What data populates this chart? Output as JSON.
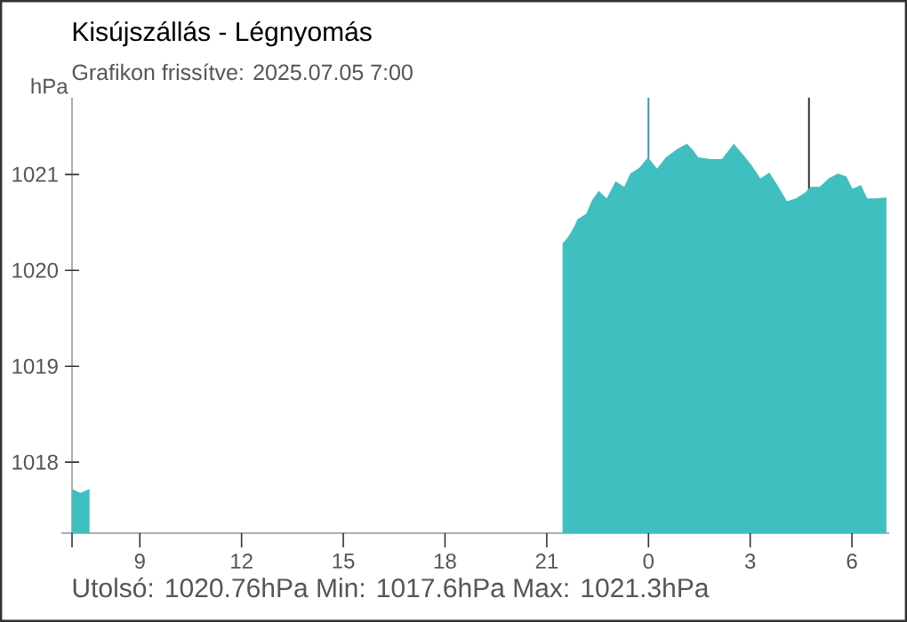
{
  "chart_data": {
    "type": "area",
    "title": "Kisújszállás - Légnyomás",
    "subtitle": "Grafikon frissítve: 2025.07.05 7:00",
    "ylabel": "hPa",
    "annotations": [
      "Utolsó: 1020.76hPa  Min: 1017.6hPa  Max: 1021.3hPa"
    ],
    "x": [
      "2025-07-04T07:00",
      "2025-07-04T07:15",
      "2025-07-04T07:31",
      "2025-07-04T14:00",
      "2025-07-04T21:28",
      "2025-07-04T21:38",
      "2025-07-04T21:49",
      "2025-07-04T21:54",
      "2025-07-04T22:10",
      "2025-07-04T22:20",
      "2025-07-04T22:32",
      "2025-07-04T22:46",
      "2025-07-04T23:02",
      "2025-07-04T23:17",
      "2025-07-04T23:28",
      "2025-07-04T23:44",
      "2025-07-04T23:59",
      "2025-07-05T00:15",
      "2025-07-05T00:31",
      "2025-07-05T00:52",
      "2025-07-05T01:08",
      "2025-07-05T01:18",
      "2025-07-05T01:28",
      "2025-07-05T01:49",
      "2025-07-05T02:10",
      "2025-07-05T02:31",
      "2025-07-05T02:47",
      "2025-07-05T03:02",
      "2025-07-05T03:18",
      "2025-07-05T03:34",
      "2025-07-05T03:50",
      "2025-07-05T04:05",
      "2025-07-05T04:21",
      "2025-07-05T04:37",
      "2025-07-05T04:47",
      "2025-07-05T05:03",
      "2025-07-05T05:19",
      "2025-07-05T05:35",
      "2025-07-05T05:50",
      "2025-07-05T06:01",
      "2025-07-05T06:16",
      "2025-07-05T06:27",
      "2025-07-05T06:43",
      "2025-07-05T07:01"
    ],
    "values": [
      1017.72,
      1017.68,
      1017.72,
      null,
      1020.28,
      1020.35,
      1020.46,
      1020.53,
      1020.59,
      1020.73,
      1020.83,
      1020.75,
      1020.93,
      1020.87,
      1021.01,
      1021.07,
      1021.18,
      1021.06,
      1021.18,
      1021.27,
      1021.32,
      1021.26,
      1021.18,
      1021.16,
      1021.16,
      1021.32,
      1021.21,
      1021.1,
      1020.96,
      1021.02,
      1020.87,
      1020.72,
      1020.75,
      1020.81,
      1020.87,
      1020.87,
      1020.96,
      1021.01,
      1020.98,
      1020.85,
      1020.89,
      1020.75,
      1020.75,
      1020.76
    ],
    "color": "#40bfc1",
    "xlim": [
      "2025-07-04T07:00",
      "2025-07-05T07:06"
    ],
    "ylim": [
      1017.26,
      1021.8
    ],
    "xticks": [
      {
        "value": "2025-07-04T07:00",
        "label": null
      },
      {
        "value": "2025-07-04T09:00",
        "label": "9"
      },
      {
        "value": "2025-07-04T12:00",
        "label": "12"
      },
      {
        "value": "2025-07-04T15:00",
        "label": "15"
      },
      {
        "value": "2025-07-04T18:00",
        "label": "18"
      },
      {
        "value": "2025-07-04T21:00",
        "label": "21"
      },
      {
        "value": "2025-07-05T00:00",
        "label": "0"
      },
      {
        "value": "2025-07-05T03:00",
        "label": "3"
      },
      {
        "value": "2025-07-05T06:00",
        "label": "6"
      }
    ],
    "yticks": [
      1018,
      1019,
      1020,
      1021
    ],
    "ref_lines": [
      {
        "axis": "x",
        "value": "2025-07-05T00:00",
        "color": "#3a8fd0"
      },
      {
        "axis": "x",
        "value": "2025-07-05T04:44",
        "color": "#333333"
      }
    ]
  }
}
